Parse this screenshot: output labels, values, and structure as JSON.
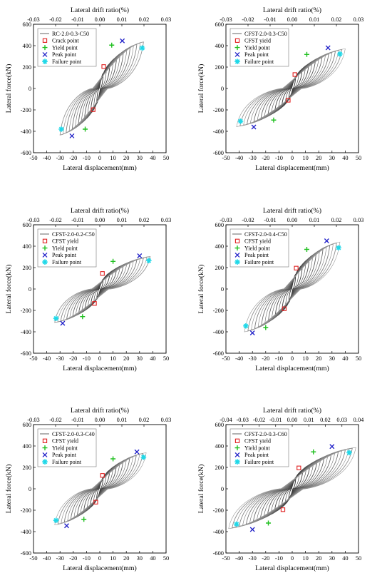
{
  "chart_data": [
    {
      "type": "line",
      "title": "",
      "xlabel": "Lateral displacement(mm)",
      "ylabel": "Lateral force(kN)",
      "x2label": "Lateral drift ratio(%)",
      "xlim": [
        -50,
        50
      ],
      "ylim": [
        -600,
        600
      ],
      "x2lim": [
        -0.03,
        0.03
      ],
      "xticks": [
        -50,
        -40,
        -30,
        -20,
        -10,
        0,
        10,
        20,
        30,
        40,
        50
      ],
      "yticks": [
        -600,
        -400,
        -200,
        0,
        200,
        400,
        600
      ],
      "x2ticks": [
        "-0.03",
        "-0.02",
        "-0.01",
        "0.00",
        "0.01",
        "0.02",
        "0.03"
      ],
      "grid": false,
      "legend_position": "top-left",
      "series": [
        {
          "name": "RC-2.0-0.3-C50",
          "kind": "hysteresis",
          "x_max": 33,
          "x_min": -30,
          "peak_pos": 445,
          "peak_neg": -445,
          "cycles": 13
        },
        {
          "name": "Crack point",
          "kind": "marker",
          "marker": "square",
          "color": "#e02020",
          "points": [
            [
              3,
              205
            ],
            [
              -5,
              -198
            ]
          ]
        },
        {
          "name": "Yield point",
          "kind": "marker",
          "marker": "plus",
          "color": "#20c020",
          "points": [
            [
              9,
              405
            ],
            [
              -11,
              -380
            ]
          ]
        },
        {
          "name": "Peak point",
          "kind": "marker",
          "marker": "x",
          "color": "#2020c8",
          "points": [
            [
              17,
              445
            ],
            [
              -21,
              -443
            ]
          ]
        },
        {
          "name": "Failure point",
          "kind": "marker",
          "marker": "star",
          "color": "#20d8e8",
          "points": [
            [
              32,
              378
            ],
            [
              -29,
              -380
            ]
          ]
        }
      ]
    },
    {
      "type": "line",
      "title": "",
      "xlabel": "Lateral displacement(mm)",
      "ylabel": "Lateral force(kN)",
      "x2label": "Lateral drift ratio(%)",
      "xlim": [
        -50,
        50
      ],
      "ylim": [
        -600,
        600
      ],
      "x2lim": [
        -0.03,
        0.03
      ],
      "xticks": [
        -50,
        -40,
        -30,
        -20,
        -10,
        0,
        10,
        20,
        30,
        40,
        50
      ],
      "yticks": [
        -600,
        -400,
        -200,
        0,
        200,
        400,
        600
      ],
      "x2ticks": [
        "-0.03",
        "-0.02",
        "-0.01",
        "0.00",
        "0.01",
        "0.02",
        "0.03"
      ],
      "grid": false,
      "legend_position": "top-left",
      "series": [
        {
          "name": "CFST-2.0-0.3-C50",
          "kind": "hysteresis",
          "x_max": 40,
          "x_min": -42,
          "peak_pos": 380,
          "peak_neg": -365,
          "cycles": 16
        },
        {
          "name": "CFST yield",
          "kind": "marker",
          "marker": "square",
          "color": "#e02020",
          "points": [
            [
              2,
              130
            ],
            [
              -3,
              -110
            ]
          ]
        },
        {
          "name": "Yield point",
          "kind": "marker",
          "marker": "plus",
          "color": "#20c020",
          "points": [
            [
              11,
              318
            ],
            [
              -14,
              -295
            ]
          ]
        },
        {
          "name": "Peak point",
          "kind": "marker",
          "marker": "x",
          "color": "#2020c8",
          "points": [
            [
              27,
              380
            ],
            [
              -29,
              -360
            ]
          ]
        },
        {
          "name": "Failure point",
          "kind": "marker",
          "marker": "star",
          "color": "#20d8e8",
          "points": [
            [
              36,
              322
            ],
            [
              -39,
              -306
            ]
          ]
        }
      ]
    },
    {
      "type": "line",
      "title": "",
      "xlabel": "Lateral displacement(mm)",
      "ylabel": "Lateral force(kN)",
      "x2label": "Lateral drift ratio(%)",
      "xlim": [
        -50,
        50
      ],
      "ylim": [
        -600,
        600
      ],
      "x2lim": [
        -0.03,
        0.03
      ],
      "xticks": [
        -50,
        -40,
        -30,
        -20,
        -10,
        0,
        10,
        20,
        30,
        40,
        50
      ],
      "yticks": [
        -600,
        -400,
        -200,
        0,
        200,
        400,
        600
      ],
      "x2ticks": [
        "-0.03",
        "-0.02",
        "-0.01",
        "0.00",
        "0.01",
        "0.02",
        "0.03"
      ],
      "grid": false,
      "legend_position": "top-left",
      "series": [
        {
          "name": "CFST-2.0-0.2-C50",
          "kind": "hysteresis",
          "x_max": 38,
          "x_min": -34,
          "peak_pos": 310,
          "peak_neg": -320,
          "cycles": 15
        },
        {
          "name": "CFST yield",
          "kind": "marker",
          "marker": "square",
          "color": "#e02020",
          "points": [
            [
              2,
              145
            ],
            [
              -4,
              -135
            ]
          ]
        },
        {
          "name": "Yield point",
          "kind": "marker",
          "marker": "plus",
          "color": "#20c020",
          "points": [
            [
              10,
              258
            ],
            [
              -13,
              -258
            ]
          ]
        },
        {
          "name": "Peak point",
          "kind": "marker",
          "marker": "x",
          "color": "#2020c8",
          "points": [
            [
              30,
              310
            ],
            [
              -28,
              -320
            ]
          ]
        },
        {
          "name": "Failure point",
          "kind": "marker",
          "marker": "star",
          "color": "#20d8e8",
          "points": [
            [
              37,
              265
            ],
            [
              -33,
              -275
            ]
          ]
        }
      ]
    },
    {
      "type": "line",
      "title": "",
      "xlabel": "Lateral displacement(mm)",
      "ylabel": "Lateral force(kN)",
      "x2label": "Lateral drift ratio(%)",
      "xlim": [
        -50,
        50
      ],
      "ylim": [
        -600,
        600
      ],
      "x2lim": [
        -0.03,
        0.03
      ],
      "xticks": [
        -50,
        -40,
        -30,
        -20,
        -10,
        0,
        10,
        20,
        30,
        40,
        50
      ],
      "yticks": [
        -600,
        -400,
        -200,
        0,
        200,
        400,
        600
      ],
      "x2ticks": [
        "-0.03",
        "-0.02",
        "-0.01",
        "0.00",
        "0.01",
        "0.02",
        "0.03"
      ],
      "grid": false,
      "legend_position": "top-left",
      "series": [
        {
          "name": "CFST-2.0-0.4-C50",
          "kind": "hysteresis",
          "x_max": 36,
          "x_min": -36,
          "peak_pos": 450,
          "peak_neg": -410,
          "cycles": 14
        },
        {
          "name": "CFST yield",
          "kind": "marker",
          "marker": "square",
          "color": "#e02020",
          "points": [
            [
              3,
              195
            ],
            [
              -6,
              -185
            ]
          ]
        },
        {
          "name": "Yield point",
          "kind": "marker",
          "marker": "plus",
          "color": "#20c020",
          "points": [
            [
              11,
              370
            ],
            [
              -20,
              -360
            ]
          ]
        },
        {
          "name": "Peak point",
          "kind": "marker",
          "marker": "x",
          "color": "#2020c8",
          "points": [
            [
              26,
              450
            ],
            [
              -30,
              -410
            ]
          ]
        },
        {
          "name": "Failure point",
          "kind": "marker",
          "marker": "star",
          "color": "#20d8e8",
          "points": [
            [
              35,
              385
            ],
            [
              -35,
              -345
            ]
          ]
        }
      ]
    },
    {
      "type": "line",
      "title": "",
      "xlabel": "Lateral displacement(mm)",
      "ylabel": "Lateral force(kN)",
      "x2label": "Lateral drift ratio(%)",
      "xlim": [
        -50,
        50
      ],
      "ylim": [
        -600,
        600
      ],
      "x2lim": [
        -0.03,
        0.03
      ],
      "xticks": [
        -50,
        -40,
        -30,
        -20,
        -10,
        0,
        10,
        20,
        30,
        40,
        50
      ],
      "yticks": [
        -600,
        -400,
        -200,
        0,
        200,
        400,
        600
      ],
      "x2ticks": [
        "-0.03",
        "-0.02",
        "-0.01",
        "0.00",
        "0.01",
        "0.02",
        "0.03"
      ],
      "grid": false,
      "legend_position": "top-left",
      "series": [
        {
          "name": "CFST-2.0-0.3-C40",
          "kind": "hysteresis",
          "x_max": 35,
          "x_min": -34,
          "peak_pos": 345,
          "peak_neg": -345,
          "cycles": 14
        },
        {
          "name": "CFST yield",
          "kind": "marker",
          "marker": "square",
          "color": "#e02020",
          "points": [
            [
              2,
              125
            ],
            [
              -3,
              -125
            ]
          ]
        },
        {
          "name": "Yield point",
          "kind": "marker",
          "marker": "plus",
          "color": "#20c020",
          "points": [
            [
              10,
              280
            ],
            [
              -12,
              -285
            ]
          ]
        },
        {
          "name": "Peak point",
          "kind": "marker",
          "marker": "x",
          "color": "#2020c8",
          "points": [
            [
              28,
              345
            ],
            [
              -25,
              -345
            ]
          ]
        },
        {
          "name": "Failure point",
          "kind": "marker",
          "marker": "star",
          "color": "#20d8e8",
          "points": [
            [
              33,
              295
            ],
            [
              -33,
              -295
            ]
          ]
        }
      ]
    },
    {
      "type": "line",
      "title": "",
      "xlabel": "Lateral displacement(mm)",
      "ylabel": "Lateral force(kN)",
      "x2label": "Lateral drift ratio(%)",
      "xlim": [
        -50,
        50
      ],
      "ylim": [
        -600,
        600
      ],
      "x2lim": [
        -0.04,
        0.04
      ],
      "xticks": [
        -50,
        -40,
        -30,
        -20,
        -10,
        0,
        10,
        20,
        30,
        40,
        50
      ],
      "yticks": [
        -600,
        -400,
        -200,
        0,
        200,
        400,
        600
      ],
      "x2ticks": [
        "-0.04",
        "-0.03",
        "-0.02",
        "-0.01",
        "0.00",
        "0.01",
        "0.02",
        "0.03",
        "0.04"
      ],
      "grid": false,
      "legend_position": "top-left",
      "series": [
        {
          "name": "CFST-2.0-0.3-C60",
          "kind": "hysteresis",
          "x_max": 48,
          "x_min": -48,
          "peak_pos": 395,
          "peak_neg": -380,
          "cycles": 18
        },
        {
          "name": "CFST yield",
          "kind": "marker",
          "marker": "square",
          "color": "#e02020",
          "points": [
            [
              5,
              195
            ],
            [
              -7,
              -195
            ]
          ]
        },
        {
          "name": "Yield point",
          "kind": "marker",
          "marker": "plus",
          "color": "#20c020",
          "points": [
            [
              16,
              345
            ],
            [
              -18,
              -320
            ]
          ]
        },
        {
          "name": "Peak point",
          "kind": "marker",
          "marker": "x",
          "color": "#2020c8",
          "points": [
            [
              30,
              395
            ],
            [
              -30,
              -380
            ]
          ]
        },
        {
          "name": "Failure point",
          "kind": "marker",
          "marker": "star",
          "color": "#20d8e8",
          "points": [
            [
              43,
              338
            ],
            [
              -42,
              -330
            ]
          ]
        }
      ]
    }
  ]
}
